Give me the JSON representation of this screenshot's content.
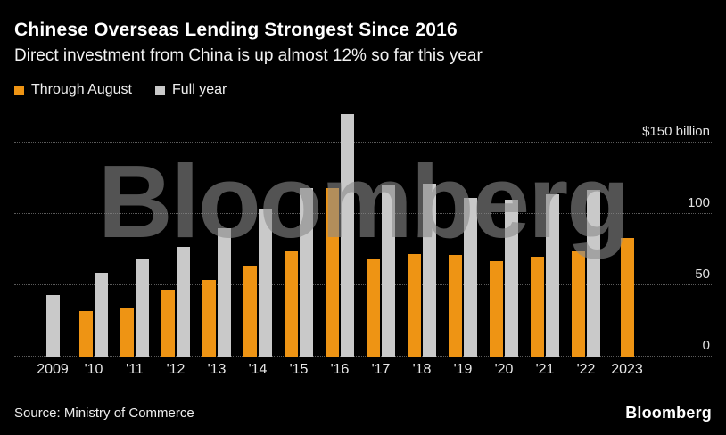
{
  "header": {
    "title": "Chinese Overseas Lending Strongest Since 2016",
    "subtitle": "Direct investment from China is up almost 12% so far this year"
  },
  "legend": [
    {
      "label": "Through August",
      "color": "#ee9414"
    },
    {
      "label": "Full year",
      "color": "#c9c9c9"
    }
  ],
  "chart_data": {
    "type": "bar",
    "title": "Chinese Overseas Lending Strongest Since 2016",
    "subtitle": "Direct investment from China is up almost 12% so far this year",
    "unit": "$ billion",
    "categories": [
      "2009",
      "'10",
      "'11",
      "'12",
      "'13",
      "'14",
      "'15",
      "'16",
      "'17",
      "'18",
      "'19",
      "'20",
      "'21",
      "'22",
      "2023"
    ],
    "series": [
      {
        "name": "Through August",
        "color": "#ee9414",
        "values": [
          null,
          32,
          34,
          47,
          54,
          64,
          74,
          118,
          69,
          72,
          71,
          67,
          70,
          74,
          83
        ]
      },
      {
        "name": "Full year",
        "color": "#c9c9c9",
        "values": [
          43,
          59,
          69,
          77,
          90,
          103,
          118,
          170,
          120,
          121,
          111,
          110,
          114,
          117,
          null
        ]
      }
    ],
    "y_axis": {
      "position": "right",
      "ticks": [
        0,
        50,
        100,
        150
      ],
      "tick_labels": [
        "0",
        "50",
        "100",
        "$150 billion"
      ],
      "range": [
        0,
        175
      ]
    },
    "gridlines": "dotted-horizontal",
    "watermark": "Bloomberg"
  },
  "footer": {
    "source": "Source: Ministry of Commerce",
    "brand": "Bloomberg"
  }
}
